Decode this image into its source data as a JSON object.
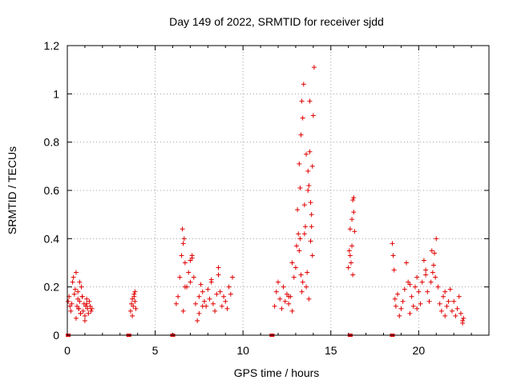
{
  "chart_data": {
    "type": "scatter",
    "title": "Day 149 of 2022, SRMTID for receiver sjdd",
    "xlabel": "GPS time / hours",
    "ylabel": "SRMTID / TECUs",
    "xlim": [
      0,
      24
    ],
    "ylim": [
      0,
      1.2
    ],
    "x_ticks": [
      0,
      5,
      10,
      15,
      20
    ],
    "x_tick_labels": [
      "0",
      "5",
      "10",
      "15",
      "20"
    ],
    "y_ticks": [
      0,
      0.2,
      0.4,
      0.6,
      0.8,
      1.0,
      1.2
    ],
    "y_tick_labels": [
      "0",
      "0.2",
      "0.4",
      "0.6",
      "0.8",
      "1",
      "1.2"
    ],
    "grid": true,
    "marker": "+",
    "color": "#e00000",
    "series": [
      {
        "name": "SRMTID",
        "x": [
          0.05,
          0.1,
          0.15,
          0.2,
          0.25,
          0.3,
          0.35,
          0.4,
          0.45,
          0.5,
          0.55,
          0.6,
          0.65,
          0.7,
          0.75,
          0.8,
          0.85,
          0.9,
          0.95,
          1.0,
          1.05,
          1.1,
          1.15,
          1.2,
          1.25,
          1.3,
          1.35,
          1.4,
          0.5,
          0.6,
          0.7,
          0.75,
          0.65,
          0.85,
          1.0,
          1.1,
          3.6,
          3.65,
          3.7,
          3.75,
          3.8,
          3.85,
          3.9,
          3.7,
          3.8,
          3.85,
          6.2,
          6.3,
          6.4,
          6.5,
          6.55,
          6.6,
          6.65,
          6.7,
          6.8,
          6.9,
          7.0,
          7.1,
          7.2,
          7.3,
          7.4,
          7.5,
          7.6,
          7.7,
          7.8,
          7.9,
          8.0,
          8.1,
          8.2,
          8.3,
          8.4,
          8.5,
          8.6,
          8.7,
          8.8,
          8.9,
          9.0,
          9.1,
          9.2,
          9.3,
          9.4,
          6.6,
          6.7,
          7.0,
          7.1,
          7.5,
          7.7,
          8.2,
          8.6,
          11.8,
          11.9,
          12.0,
          12.1,
          12.2,
          12.3,
          12.4,
          12.5,
          12.6,
          12.7,
          12.8,
          12.9,
          13.0,
          13.05,
          13.1,
          13.15,
          13.2,
          13.25,
          13.3,
          13.35,
          13.4,
          13.45,
          13.5,
          13.55,
          13.6,
          13.65,
          13.7,
          13.75,
          13.8,
          13.85,
          13.9,
          13.95,
          14.0,
          14.05,
          13.2,
          13.3,
          13.5,
          13.7,
          13.8,
          13.9,
          13.25,
          13.35,
          13.6,
          13.75,
          13.85,
          13.95,
          13.4,
          12.8,
          12.6,
          16.0,
          16.05,
          16.1,
          16.15,
          16.2,
          16.25,
          16.3,
          16.35,
          16.1,
          16.2,
          16.3,
          16.25,
          18.5,
          18.55,
          18.6,
          18.65,
          18.7,
          18.8,
          18.9,
          19.0,
          19.1,
          19.2,
          19.3,
          19.4,
          19.5,
          19.6,
          19.7,
          19.8,
          19.9,
          20.0,
          20.1,
          20.2,
          20.3,
          20.4,
          20.5,
          20.6,
          20.7,
          20.8,
          20.9,
          21.0,
          21.1,
          21.2,
          21.3,
          21.4,
          21.5,
          21.6,
          21.7,
          21.8,
          21.9,
          22.0,
          22.1,
          22.2,
          22.3,
          22.4,
          22.5,
          22.55,
          20.75,
          20.85,
          20.95,
          19.5,
          19.9,
          20.4,
          21.5,
          22.5
        ],
        "y": [
          0.14,
          0.16,
          0.12,
          0.1,
          0.13,
          0.22,
          0.24,
          0.17,
          0.19,
          0.26,
          0.12,
          0.15,
          0.11,
          0.14,
          0.09,
          0.2,
          0.16,
          0.1,
          0.13,
          0.08,
          0.12,
          0.15,
          0.11,
          0.09,
          0.14,
          0.12,
          0.1,
          0.11,
          0.07,
          0.18,
          0.22,
          0.09,
          0.11,
          0.16,
          0.06,
          0.13,
          0.1,
          0.13,
          0.15,
          0.12,
          0.17,
          0.14,
          0.11,
          0.08,
          0.16,
          0.18,
          0.13,
          0.16,
          0.24,
          0.33,
          0.44,
          0.38,
          0.4,
          0.3,
          0.2,
          0.26,
          0.31,
          0.32,
          0.24,
          0.13,
          0.06,
          0.16,
          0.21,
          0.18,
          0.14,
          0.12,
          0.19,
          0.15,
          0.22,
          0.13,
          0.1,
          0.17,
          0.25,
          0.18,
          0.12,
          0.16,
          0.14,
          0.11,
          0.2,
          0.17,
          0.24,
          0.1,
          0.2,
          0.22,
          0.33,
          0.09,
          0.12,
          0.23,
          0.28,
          0.12,
          0.18,
          0.22,
          0.15,
          0.11,
          0.2,
          0.14,
          0.17,
          0.13,
          0.16,
          0.3,
          0.24,
          0.28,
          0.37,
          0.52,
          0.42,
          0.71,
          0.61,
          0.83,
          0.97,
          0.9,
          1.04,
          0.54,
          0.45,
          0.75,
          0.26,
          0.68,
          0.62,
          0.76,
          0.55,
          0.45,
          0.33,
          0.91,
          1.11,
          0.35,
          0.25,
          0.42,
          0.6,
          0.97,
          0.5,
          0.4,
          0.18,
          0.2,
          0.15,
          0.39,
          0.7,
          0.22,
          0.1,
          0.16,
          0.28,
          0.35,
          0.44,
          0.3,
          0.37,
          0.56,
          0.51,
          0.43,
          0.33,
          0.48,
          0.57,
          0.25,
          0.38,
          0.33,
          0.27,
          0.15,
          0.12,
          0.17,
          0.08,
          0.11,
          0.14,
          0.19,
          0.3,
          0.22,
          0.09,
          0.16,
          0.12,
          0.2,
          0.24,
          0.18,
          0.13,
          0.22,
          0.31,
          0.25,
          0.18,
          0.14,
          0.22,
          0.26,
          0.34,
          0.4,
          0.2,
          0.13,
          0.1,
          0.16,
          0.08,
          0.12,
          0.14,
          0.19,
          0.1,
          0.14,
          0.08,
          0.11,
          0.16,
          0.09,
          0.05,
          0.07,
          0.35,
          0.29,
          0.24,
          0.21,
          0.11,
          0.27,
          0.18,
          0.06
        ]
      }
    ],
    "gap_markers": {
      "x": [
        0.05,
        3.5,
        6.0,
        11.65,
        16.1,
        18.5
      ],
      "y": [
        0,
        0,
        0,
        0,
        0,
        0
      ]
    }
  }
}
